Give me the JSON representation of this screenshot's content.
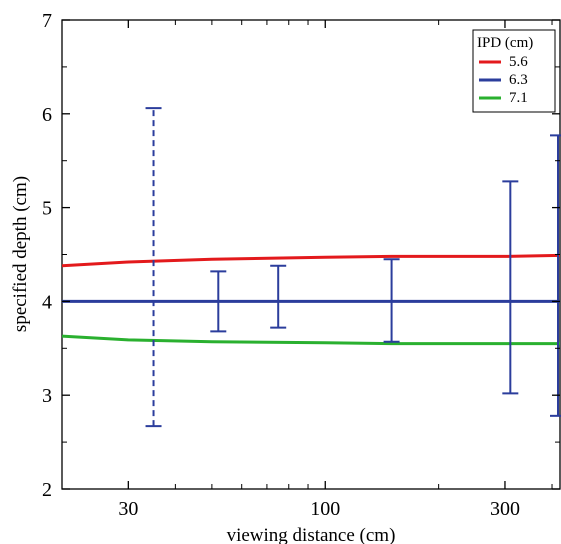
{
  "chart_data": {
    "type": "line",
    "xlabel": "viewing distance (cm)",
    "ylabel": "specified depth (cm)",
    "x_scale": "log",
    "xlim": [
      20,
      420
    ],
    "ylim": [
      2,
      7
    ],
    "x_ticks": [
      30,
      100,
      300
    ],
    "y_ticks": [
      2,
      3,
      4,
      5,
      6,
      7
    ],
    "grid": false,
    "legend": {
      "title": "IPD (cm)",
      "placement": "top-right"
    },
    "series": [
      {
        "name": "5.6",
        "color": "#e31a1c",
        "x": [
          20,
          30,
          50,
          100,
          150,
          200,
          300,
          420
        ],
        "y": [
          4.38,
          4.42,
          4.45,
          4.47,
          4.48,
          4.48,
          4.48,
          4.49
        ]
      },
      {
        "name": "6.3",
        "color": "#2b3d9c",
        "x": [
          20,
          420
        ],
        "y": [
          4.0,
          4.0
        ]
      },
      {
        "name": "7.1",
        "color": "#2ab02f",
        "x": [
          20,
          30,
          50,
          100,
          150,
          200,
          300,
          420
        ],
        "y": [
          3.63,
          3.59,
          3.57,
          3.56,
          3.55,
          3.55,
          3.55,
          3.55
        ]
      }
    ],
    "error_bars": [
      {
        "x": 35,
        "low": 2.67,
        "high": 6.06,
        "dashed": true
      },
      {
        "x": 52,
        "low": 3.68,
        "high": 4.32,
        "dashed": false
      },
      {
        "x": 75,
        "low": 3.72,
        "high": 4.38,
        "dashed": false
      },
      {
        "x": 150,
        "low": 3.57,
        "high": 4.45,
        "dashed": false
      },
      {
        "x": 310,
        "low": 3.02,
        "high": 5.28,
        "dashed": false
      },
      {
        "x": 420,
        "low": 2.78,
        "high": 5.77,
        "dashed": false
      }
    ],
    "error_bar_color": "#2b3d9c"
  }
}
